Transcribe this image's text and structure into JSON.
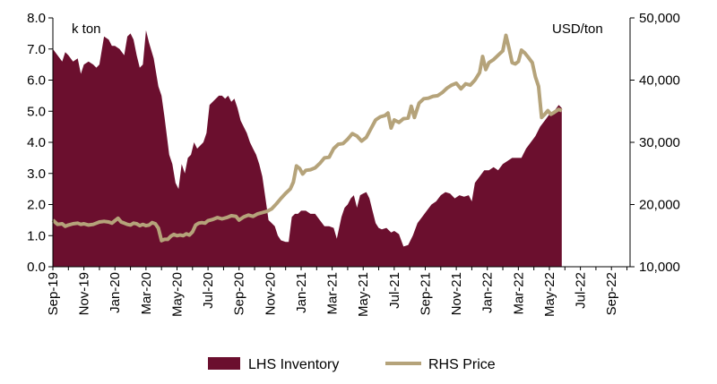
{
  "chart_data": {
    "type": "area",
    "title": "",
    "left_axis_unit": "k ton",
    "right_axis_unit": "USD/ton",
    "left_ylim": [
      0,
      8
    ],
    "right_ylim": [
      10000,
      50000
    ],
    "left_ticks": [
      "0.0",
      "1.0",
      "2.0",
      "3.0",
      "4.0",
      "5.0",
      "6.0",
      "7.0",
      "8.0"
    ],
    "right_ticks": [
      "10,000",
      "20,000",
      "30,000",
      "40,000",
      "50,000"
    ],
    "x_ticks": [
      "Sep-19",
      "Nov-19",
      "Jan-20",
      "Mar-20",
      "May-20",
      "Jul-20",
      "Sep-20",
      "Nov-20",
      "Jan-21",
      "Mar-21",
      "May-21",
      "Jul-21",
      "Sep-21",
      "Nov-21",
      "Jan-22",
      "Mar-22",
      "May-22",
      "Jul-22",
      "Sep-22"
    ],
    "x_range_months": [
      0,
      37.2
    ],
    "grid": false,
    "legend_position": "bottom",
    "colors": {
      "inventory": "#6b0f2e",
      "price": "#b5a37a",
      "axis": "#000000"
    },
    "series": [
      {
        "name": "LHS Inventory",
        "axis": "left",
        "kind": "area",
        "points": [
          [
            0.0,
            7.0
          ],
          [
            0.3,
            6.8
          ],
          [
            0.6,
            6.6
          ],
          [
            0.8,
            6.9
          ],
          [
            1.0,
            6.8
          ],
          [
            1.3,
            6.6
          ],
          [
            1.6,
            6.7
          ],
          [
            1.8,
            6.2
          ],
          [
            2.0,
            6.5
          ],
          [
            2.3,
            6.6
          ],
          [
            2.6,
            6.5
          ],
          [
            2.8,
            6.4
          ],
          [
            3.0,
            6.5
          ],
          [
            3.3,
            7.4
          ],
          [
            3.6,
            7.3
          ],
          [
            3.8,
            7.1
          ],
          [
            4.0,
            7.1
          ],
          [
            4.3,
            7.0
          ],
          [
            4.6,
            6.8
          ],
          [
            4.8,
            7.4
          ],
          [
            5.0,
            7.5
          ],
          [
            5.2,
            7.3
          ],
          [
            5.4,
            6.8
          ],
          [
            5.6,
            6.4
          ],
          [
            5.8,
            6.5
          ],
          [
            6.0,
            7.6
          ],
          [
            6.2,
            7.2
          ],
          [
            6.5,
            6.7
          ],
          [
            6.8,
            5.8
          ],
          [
            7.0,
            5.5
          ],
          [
            7.2,
            4.8
          ],
          [
            7.5,
            3.6
          ],
          [
            7.7,
            3.3
          ],
          [
            7.9,
            2.7
          ],
          [
            8.1,
            2.5
          ],
          [
            8.3,
            3.3
          ],
          [
            8.5,
            3.0
          ],
          [
            8.7,
            3.5
          ],
          [
            8.9,
            3.6
          ],
          [
            9.1,
            4.0
          ],
          [
            9.3,
            3.8
          ],
          [
            9.5,
            3.9
          ],
          [
            9.7,
            4.0
          ],
          [
            9.9,
            4.3
          ],
          [
            10.1,
            5.2
          ],
          [
            10.3,
            5.3
          ],
          [
            10.5,
            5.4
          ],
          [
            10.7,
            5.5
          ],
          [
            10.9,
            5.5
          ],
          [
            11.1,
            5.4
          ],
          [
            11.3,
            5.5
          ],
          [
            11.5,
            5.3
          ],
          [
            11.7,
            5.4
          ],
          [
            11.9,
            5.1
          ],
          [
            12.1,
            4.7
          ],
          [
            12.3,
            4.5
          ],
          [
            12.5,
            4.3
          ],
          [
            12.7,
            4.0
          ],
          [
            12.9,
            3.8
          ],
          [
            13.1,
            3.6
          ],
          [
            13.3,
            3.3
          ],
          [
            13.5,
            2.9
          ],
          [
            13.7,
            2.2
          ],
          [
            13.9,
            1.5
          ],
          [
            14.1,
            1.4
          ],
          [
            14.3,
            1.3
          ],
          [
            14.5,
            1.0
          ],
          [
            14.7,
            0.85
          ],
          [
            15.0,
            0.8
          ],
          [
            15.2,
            0.8
          ],
          [
            15.4,
            1.6
          ],
          [
            15.6,
            1.7
          ],
          [
            15.8,
            1.7
          ],
          [
            16.0,
            1.8
          ],
          [
            16.3,
            1.8
          ],
          [
            16.6,
            1.7
          ],
          [
            16.9,
            1.7
          ],
          [
            17.2,
            1.5
          ],
          [
            17.5,
            1.3
          ],
          [
            17.8,
            1.3
          ],
          [
            18.1,
            1.25
          ],
          [
            18.3,
            0.9
          ],
          [
            18.6,
            1.6
          ],
          [
            18.8,
            1.9
          ],
          [
            19.0,
            2.0
          ],
          [
            19.2,
            2.2
          ],
          [
            19.4,
            2.3
          ],
          [
            19.6,
            1.9
          ],
          [
            19.8,
            2.3
          ],
          [
            20.0,
            2.35
          ],
          [
            20.2,
            2.4
          ],
          [
            20.4,
            2.2
          ],
          [
            20.6,
            1.8
          ],
          [
            20.8,
            1.4
          ],
          [
            21.0,
            1.25
          ],
          [
            21.2,
            1.2
          ],
          [
            21.5,
            1.25
          ],
          [
            21.8,
            1.1
          ],
          [
            22.0,
            1.15
          ],
          [
            22.3,
            1.05
          ],
          [
            22.6,
            0.65
          ],
          [
            22.9,
            0.7
          ],
          [
            23.2,
            1.0
          ],
          [
            23.5,
            1.4
          ],
          [
            23.8,
            1.6
          ],
          [
            24.1,
            1.8
          ],
          [
            24.4,
            2.0
          ],
          [
            24.7,
            2.1
          ],
          [
            25.0,
            2.3
          ],
          [
            25.3,
            2.4
          ],
          [
            25.6,
            2.35
          ],
          [
            25.9,
            2.2
          ],
          [
            26.2,
            2.3
          ],
          [
            26.5,
            2.25
          ],
          [
            26.8,
            2.3
          ],
          [
            27.0,
            2.1
          ],
          [
            27.2,
            2.7
          ],
          [
            27.5,
            2.9
          ],
          [
            27.8,
            3.1
          ],
          [
            28.1,
            3.1
          ],
          [
            28.4,
            3.2
          ],
          [
            28.7,
            3.1
          ],
          [
            29.0,
            3.3
          ],
          [
            29.3,
            3.4
          ],
          [
            29.6,
            3.5
          ],
          [
            29.9,
            3.5
          ],
          [
            30.2,
            3.5
          ],
          [
            30.5,
            3.8
          ],
          [
            30.8,
            4.0
          ],
          [
            31.1,
            4.2
          ],
          [
            31.4,
            4.5
          ],
          [
            31.7,
            4.7
          ],
          [
            32.0,
            4.9
          ],
          [
            32.3,
            5.0
          ],
          [
            32.6,
            5.2
          ],
          [
            32.8,
            5.1
          ]
        ]
      },
      {
        "name": "RHS Price",
        "axis": "right",
        "kind": "line",
        "points": [
          [
            0.0,
            17500
          ],
          [
            0.3,
            16800
          ],
          [
            0.6,
            16900
          ],
          [
            0.8,
            16500
          ],
          [
            1.0,
            16700
          ],
          [
            1.3,
            16900
          ],
          [
            1.6,
            17000
          ],
          [
            1.8,
            16800
          ],
          [
            2.0,
            16900
          ],
          [
            2.3,
            16700
          ],
          [
            2.6,
            16800
          ],
          [
            2.8,
            17000
          ],
          [
            3.0,
            17200
          ],
          [
            3.3,
            17300
          ],
          [
            3.6,
            17200
          ],
          [
            3.8,
            17000
          ],
          [
            4.0,
            17400
          ],
          [
            4.2,
            17800
          ],
          [
            4.4,
            17200
          ],
          [
            4.6,
            17000
          ],
          [
            4.8,
            16800
          ],
          [
            5.0,
            16700
          ],
          [
            5.2,
            17000
          ],
          [
            5.4,
            16900
          ],
          [
            5.6,
            16600
          ],
          [
            5.8,
            16800
          ],
          [
            6.0,
            16600
          ],
          [
            6.2,
            16700
          ],
          [
            6.4,
            17100
          ],
          [
            6.6,
            16900
          ],
          [
            6.8,
            16200
          ],
          [
            7.0,
            14200
          ],
          [
            7.2,
            14400
          ],
          [
            7.4,
            14400
          ],
          [
            7.6,
            14900
          ],
          [
            7.8,
            15200
          ],
          [
            8.0,
            15000
          ],
          [
            8.2,
            15100
          ],
          [
            8.4,
            15000
          ],
          [
            8.6,
            15300
          ],
          [
            8.8,
            15100
          ],
          [
            9.0,
            15600
          ],
          [
            9.2,
            16700
          ],
          [
            9.4,
            17000
          ],
          [
            9.6,
            17100
          ],
          [
            9.8,
            17000
          ],
          [
            10.0,
            17400
          ],
          [
            10.3,
            17600
          ],
          [
            10.6,
            17900
          ],
          [
            10.9,
            17700
          ],
          [
            11.2,
            17900
          ],
          [
            11.5,
            18200
          ],
          [
            11.8,
            18100
          ],
          [
            12.0,
            17500
          ],
          [
            12.3,
            18000
          ],
          [
            12.6,
            18300
          ],
          [
            12.9,
            18100
          ],
          [
            13.2,
            18500
          ],
          [
            13.5,
            18700
          ],
          [
            13.8,
            18900
          ],
          [
            14.1,
            19300
          ],
          [
            14.4,
            20100
          ],
          [
            14.7,
            21000
          ],
          [
            15.0,
            21800
          ],
          [
            15.3,
            22500
          ],
          [
            15.5,
            23600
          ],
          [
            15.7,
            26200
          ],
          [
            15.9,
            25800
          ],
          [
            16.1,
            24900
          ],
          [
            16.3,
            25500
          ],
          [
            16.6,
            25600
          ],
          [
            16.9,
            25900
          ],
          [
            17.2,
            26600
          ],
          [
            17.5,
            27500
          ],
          [
            17.8,
            27600
          ],
          [
            18.1,
            29000
          ],
          [
            18.4,
            29700
          ],
          [
            18.7,
            29800
          ],
          [
            19.0,
            30500
          ],
          [
            19.3,
            31400
          ],
          [
            19.6,
            31000
          ],
          [
            19.9,
            30200
          ],
          [
            20.2,
            30800
          ],
          [
            20.5,
            32200
          ],
          [
            20.8,
            33600
          ],
          [
            21.1,
            34100
          ],
          [
            21.4,
            34300
          ],
          [
            21.6,
            34700
          ],
          [
            21.8,
            32300
          ],
          [
            22.0,
            33600
          ],
          [
            22.3,
            33200
          ],
          [
            22.6,
            33800
          ],
          [
            22.9,
            33900
          ],
          [
            23.1,
            35800
          ],
          [
            23.3,
            34000
          ],
          [
            23.6,
            36300
          ],
          [
            23.9,
            37000
          ],
          [
            24.2,
            37100
          ],
          [
            24.5,
            37400
          ],
          [
            24.8,
            37500
          ],
          [
            25.1,
            38000
          ],
          [
            25.4,
            38700
          ],
          [
            25.7,
            39200
          ],
          [
            26.0,
            39500
          ],
          [
            26.3,
            38600
          ],
          [
            26.6,
            39400
          ],
          [
            26.9,
            39200
          ],
          [
            27.2,
            40000
          ],
          [
            27.5,
            41200
          ],
          [
            27.7,
            43800
          ],
          [
            27.9,
            41700
          ],
          [
            28.1,
            42800
          ],
          [
            28.4,
            43300
          ],
          [
            28.7,
            44000
          ],
          [
            29.0,
            44700
          ],
          [
            29.2,
            47200
          ],
          [
            29.4,
            45100
          ],
          [
            29.6,
            42800
          ],
          [
            29.8,
            42600
          ],
          [
            30.0,
            43000
          ],
          [
            30.2,
            44800
          ],
          [
            30.4,
            44400
          ],
          [
            30.6,
            43800
          ],
          [
            30.9,
            42800
          ],
          [
            31.1,
            40500
          ],
          [
            31.3,
            39000
          ],
          [
            31.5,
            34000
          ],
          [
            31.7,
            34500
          ],
          [
            31.9,
            35100
          ],
          [
            32.1,
            34500
          ],
          [
            32.3,
            34800
          ],
          [
            32.6,
            35300
          ],
          [
            32.8,
            35100
          ]
        ]
      }
    ],
    "legend": [
      {
        "name": "LHS Inventory",
        "kind": "area"
      },
      {
        "name": "RHS Price",
        "kind": "line"
      }
    ]
  }
}
